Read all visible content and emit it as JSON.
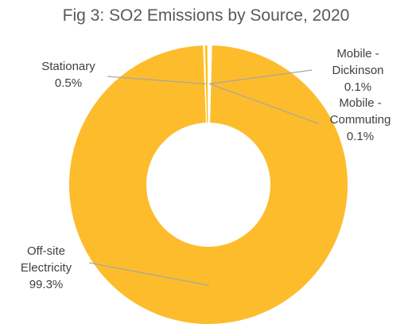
{
  "chart_data": {
    "type": "pie",
    "title": "Fig 3: SO2 Emissions by Source, 2020",
    "donut": true,
    "slices": [
      {
        "label_lines": [
          "Mobile  -",
          "Dickinson"
        ],
        "value_label": "0.1%",
        "value": 0.1,
        "color": "#FFC000"
      },
      {
        "label_lines": [
          "Mobile -",
          "Commuting"
        ],
        "value_label": "0.1%",
        "value": 0.1,
        "color": "#FFC000"
      },
      {
        "label_lines": [
          "Off-site",
          "Electricity"
        ],
        "value_label": "99.3%",
        "value": 99.3,
        "color": "#FDBC2C"
      },
      {
        "label_lines": [
          "Stationary"
        ],
        "value_label": "0.5%",
        "value": 0.5,
        "color": "#FFC000"
      }
    ],
    "colors": {
      "slice": "#FDBC2C",
      "leader": "#A6A6A6",
      "label": "#404040",
      "title": "#595959"
    }
  }
}
